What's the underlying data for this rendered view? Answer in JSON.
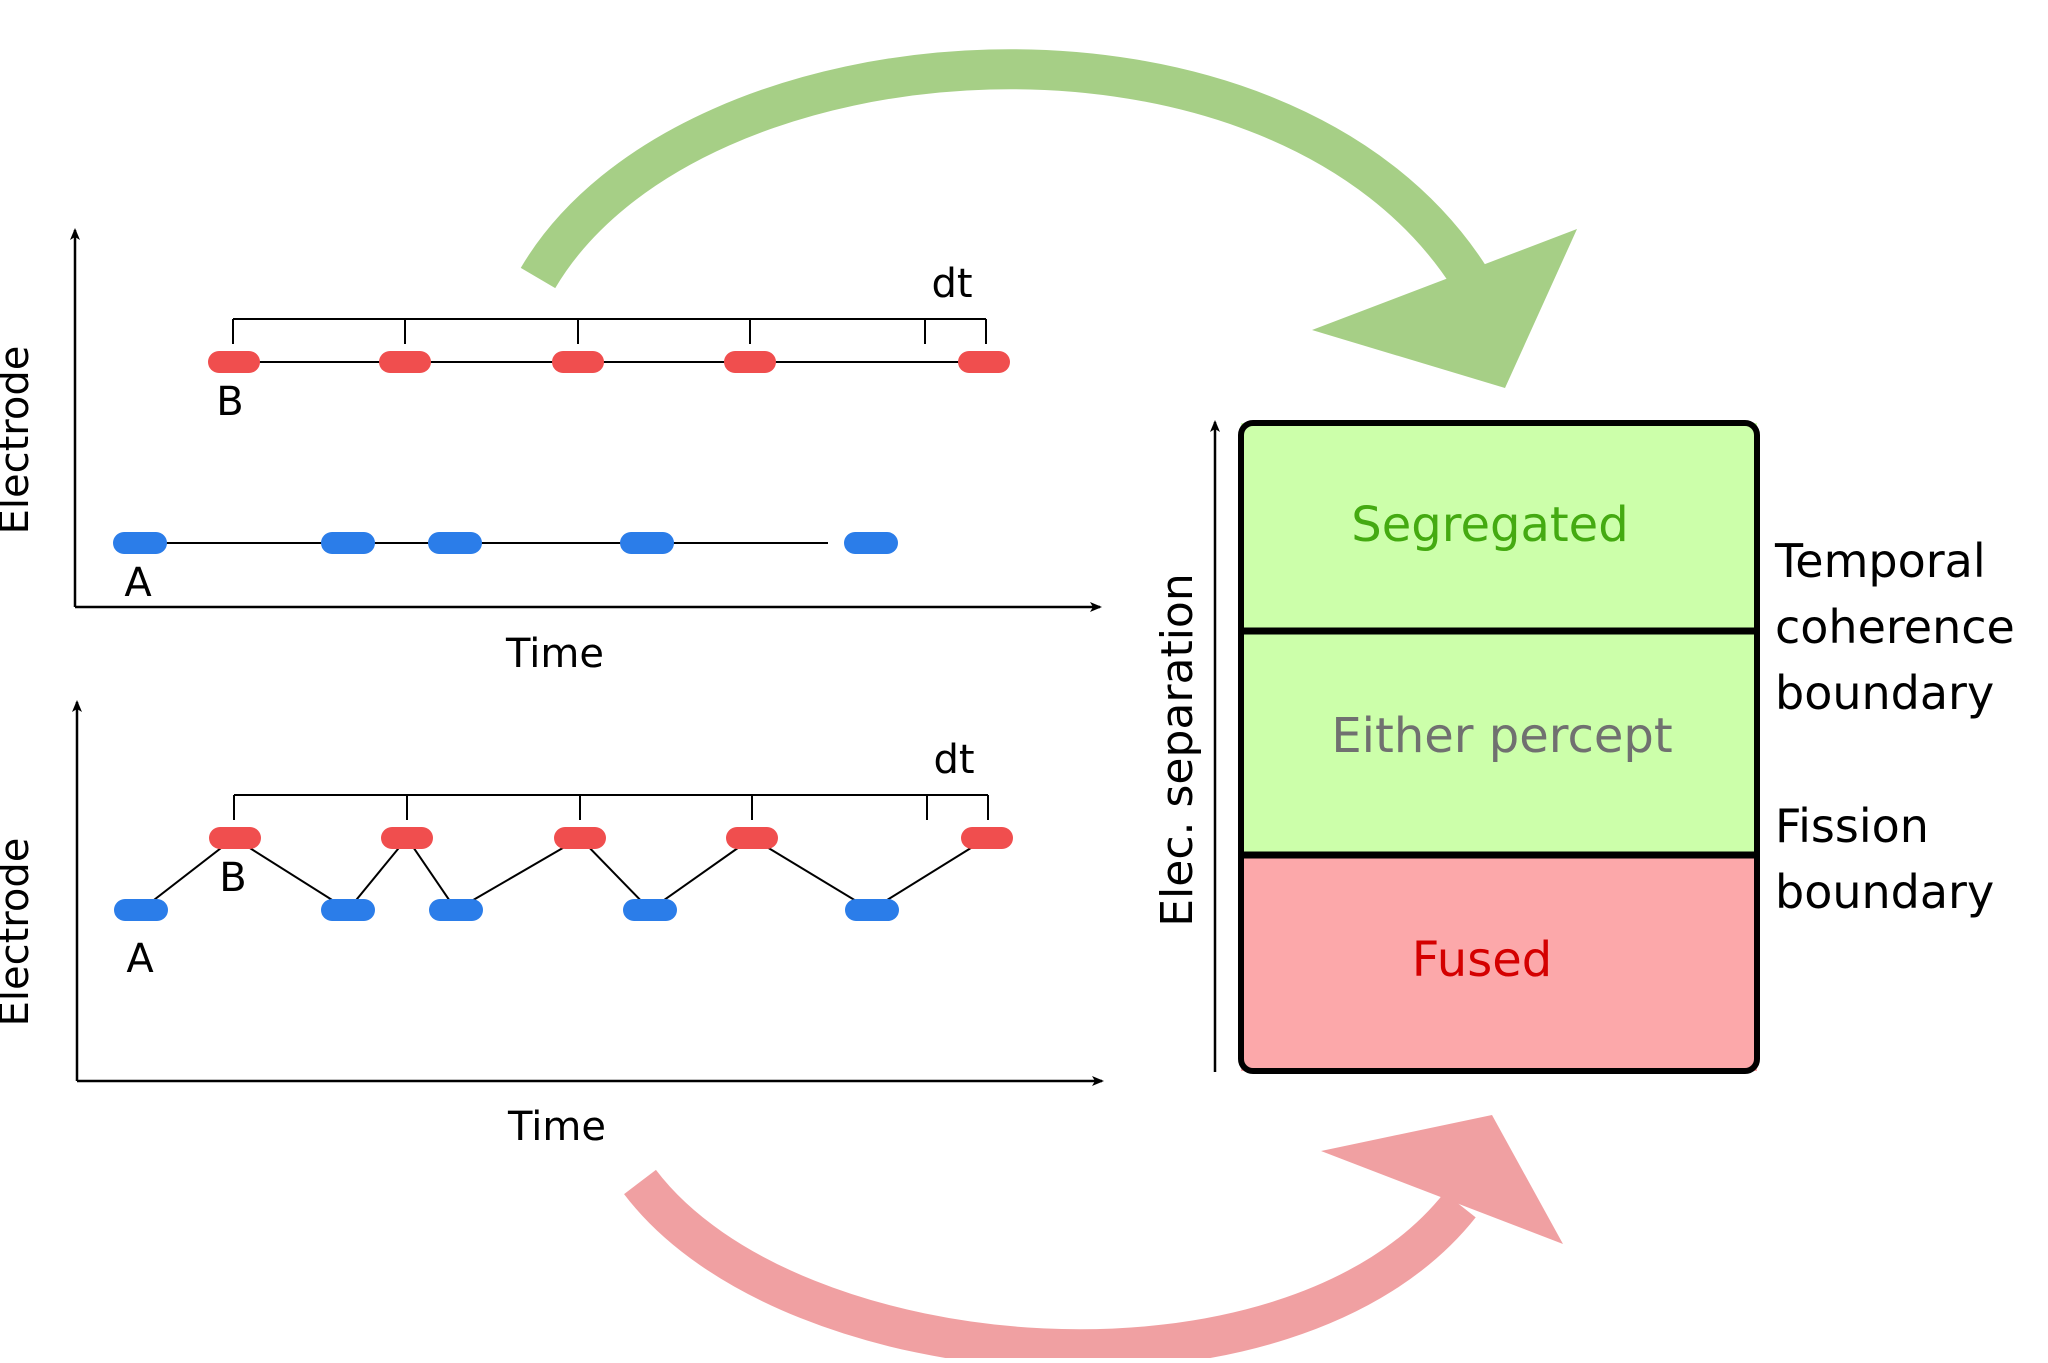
{
  "colors": {
    "red_tone": "#f04e4e",
    "blue_tone": "#2b7de9",
    "green_arrow": "#a6cf86",
    "red_arrow": "#f0a0a2",
    "segregated_fill": "#ccffaa",
    "fused_fill": "#fca8aa",
    "segregated_text": "#44aa11",
    "either_text": "#707070",
    "fused_text": "#d40000"
  },
  "panel_top": {
    "y_axis_label": "Electrode",
    "x_axis_label": "Time",
    "interval_label": "dt",
    "stream_a_label": "A",
    "stream_b_label": "B"
  },
  "panel_bottom": {
    "y_axis_label": "Electrode",
    "x_axis_label": "Time",
    "interval_label": "dt",
    "stream_a_label": "A",
    "stream_b_label": "B"
  },
  "percept_chart": {
    "axis_label": "Elec. separation",
    "regions": [
      {
        "name": "segregated",
        "label": "Segregated"
      },
      {
        "name": "either",
        "label": "Either percept"
      },
      {
        "name": "fused",
        "label": "Fused"
      }
    ],
    "boundary_upper_label": [
      "Temporal",
      "coherence",
      "boundary"
    ],
    "boundary_lower_label": [
      "Fission",
      "boundary"
    ]
  }
}
